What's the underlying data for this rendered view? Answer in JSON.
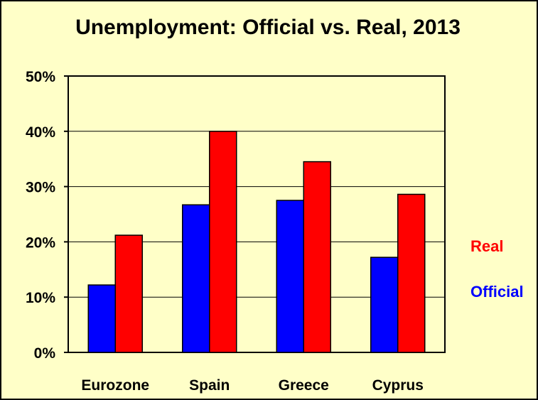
{
  "chart_data": {
    "type": "bar",
    "title": "Unemployment: Official vs. Real, 2013",
    "xlabel": "",
    "ylabel": "",
    "categories": [
      "Eurozone",
      "Spain",
      "Greece",
      "Cyprus"
    ],
    "series": [
      {
        "name": "Official",
        "color": "#0000ff",
        "values": [
          12.2,
          26.7,
          27.5,
          17.2
        ]
      },
      {
        "name": "Real",
        "color": "#ff0000",
        "values": [
          21.2,
          40.0,
          34.5,
          28.6
        ]
      }
    ],
    "ylim": [
      0,
      50
    ],
    "yticks": [
      {
        "value": 0,
        "label": "0%"
      },
      {
        "value": 10,
        "label": "10%"
      },
      {
        "value": 20,
        "label": "20%"
      },
      {
        "value": 30,
        "label": "30%"
      },
      {
        "value": 40,
        "label": "40%"
      },
      {
        "value": 50,
        "label": "50%"
      }
    ],
    "grid": true,
    "legend_position": "right",
    "legend_order": [
      "Real",
      "Official"
    ],
    "background_color": "#ffffc8"
  }
}
